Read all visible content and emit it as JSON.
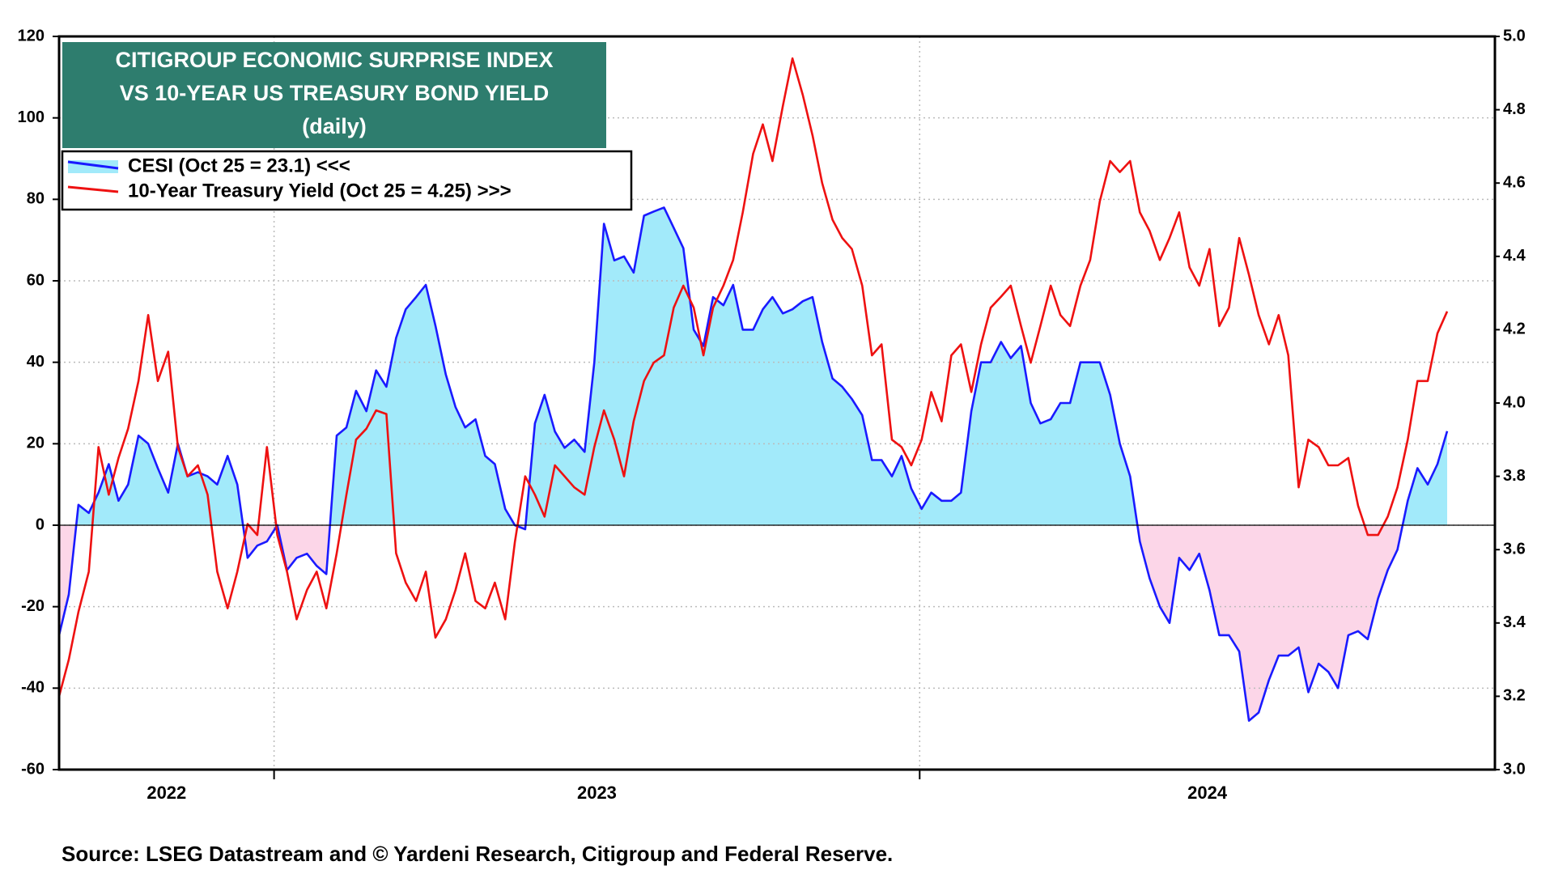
{
  "chart_data": {
    "type": "line",
    "title_lines": [
      "CITIGROUP ECONOMIC SURPRISE INDEX",
      "VS 10-YEAR US TREASURY BOND YIELD",
      "(daily)"
    ],
    "title_color": "#2e7d6e",
    "source": "Source: LSEG Datastream and © Yardeni Research, Citigroup and Federal Reserve.",
    "year_labels": [
      "2022",
      "2023",
      "2024"
    ],
    "xticks": [
      2023,
      2024
    ],
    "xlim": [
      2022.667,
      2024.891
    ],
    "ylim": [
      -60,
      120
    ],
    "yticks": [
      120,
      100,
      80,
      60,
      40,
      20,
      0,
      -20,
      -40,
      -60
    ],
    "y2lim": [
      3.0,
      5.0
    ],
    "y2ticks": [
      {
        "value": 5.0,
        "label": "5.0"
      },
      4.8,
      4.6,
      4.4,
      4.2,
      {
        "value": 4.0,
        "label": "4.0"
      },
      3.8,
      3.6,
      3.4,
      3.2,
      {
        "value": 3.0,
        "label": "3.0"
      }
    ],
    "grid": true,
    "legend": "upper left",
    "x": [
      2022.667,
      2022.682,
      2022.697,
      2022.713,
      2022.728,
      2022.744,
      2022.759,
      2022.774,
      2022.79,
      2022.805,
      2022.82,
      2022.836,
      2022.851,
      2022.866,
      2022.882,
      2022.897,
      2022.912,
      2022.928,
      2022.943,
      2022.959,
      2022.974,
      2022.989,
      2023.005,
      2023.02,
      2023.035,
      2023.051,
      2023.066,
      2023.081,
      2023.097,
      2023.112,
      2023.127,
      2023.143,
      2023.158,
      2023.174,
      2023.189,
      2023.204,
      2023.22,
      2023.235,
      2023.25,
      2023.266,
      2023.281,
      2023.296,
      2023.312,
      2023.327,
      2023.342,
      2023.358,
      2023.373,
      2023.389,
      2023.404,
      2023.419,
      2023.435,
      2023.45,
      2023.465,
      2023.481,
      2023.496,
      2023.511,
      2023.527,
      2023.542,
      2023.557,
      2023.573,
      2023.588,
      2023.604,
      2023.619,
      2023.634,
      2023.65,
      2023.665,
      2023.68,
      2023.696,
      2023.711,
      2023.726,
      2023.742,
      2023.757,
      2023.772,
      2023.788,
      2023.803,
      2023.819,
      2023.834,
      2023.849,
      2023.865,
      2023.88,
      2023.895,
      2023.911,
      2023.926,
      2023.941,
      2023.957,
      2023.972,
      2023.987,
      2024.003,
      2024.018,
      2024.034,
      2024.049,
      2024.064,
      2024.08,
      2024.095,
      2024.11,
      2024.126,
      2024.141,
      2024.157,
      2024.172,
      2024.187,
      2024.203,
      2024.218,
      2024.233,
      2024.249,
      2024.264,
      2024.279,
      2024.295,
      2024.31,
      2024.326,
      2024.341,
      2024.356,
      2024.372,
      2024.387,
      2024.402,
      2024.418,
      2024.433,
      2024.449,
      2024.464,
      2024.479,
      2024.495,
      2024.51,
      2024.525,
      2024.541,
      2024.556,
      2024.571,
      2024.587,
      2024.602,
      2024.618,
      2024.633,
      2024.648,
      2024.664,
      2024.679,
      2024.694,
      2024.71,
      2024.725,
      2024.74,
      2024.756,
      2024.771,
      2024.787,
      2024.802,
      2024.817
    ],
    "series": [
      {
        "name": "CESI (Oct 25 = 23.1) <<<",
        "color": "#1a1aff",
        "fill_positive": "#a2eafa",
        "fill_negative": "#fcd6e8",
        "axis": "y",
        "values": [
          -27,
          -17,
          5,
          3,
          8,
          15,
          6,
          10,
          22,
          20,
          14,
          8,
          20,
          12,
          13,
          12,
          10,
          17,
          10,
          -8,
          -5,
          -4,
          0,
          -11,
          -8,
          -7,
          -10,
          -12,
          22,
          24,
          33,
          28,
          38,
          34,
          46,
          53,
          56,
          59,
          49,
          37,
          29,
          24,
          26,
          17,
          15,
          4,
          0,
          -1,
          25,
          32,
          23,
          19,
          21,
          18,
          40,
          74,
          65,
          66,
          62,
          76,
          77,
          78,
          73,
          68,
          48,
          44,
          56,
          54,
          59,
          48,
          48,
          53,
          56,
          52,
          53,
          55,
          56,
          45,
          36,
          34,
          31,
          27,
          16,
          16,
          12,
          17,
          9,
          4,
          8,
          6,
          6,
          8,
          28,
          40,
          40,
          45,
          41,
          44,
          30,
          25,
          26,
          30,
          30,
          40,
          40,
          40,
          32,
          20,
          12,
          -4,
          -13,
          -20,
          -24,
          -8,
          -11,
          -7,
          -16,
          -27,
          -27,
          -31,
          -48,
          -46,
          -38,
          -32,
          -32,
          -30,
          -41,
          -34,
          -36,
          -40,
          -27,
          -26,
          -28,
          -18,
          -11,
          -6,
          6,
          14,
          10,
          15,
          23.1
        ]
      },
      {
        "name": "10-Year Treasury Yield (Oct 25 = 4.25) >>>",
        "color": "#ee1111",
        "axis": "y2",
        "values": [
          3.2,
          3.3,
          3.43,
          3.54,
          3.88,
          3.75,
          3.85,
          3.93,
          4.06,
          4.24,
          4.06,
          4.14,
          3.88,
          3.8,
          3.83,
          3.75,
          3.54,
          3.44,
          3.54,
          3.67,
          3.64,
          3.88,
          3.64,
          3.54,
          3.41,
          3.49,
          3.54,
          3.44,
          3.59,
          3.75,
          3.9,
          3.93,
          3.98,
          3.97,
          3.59,
          3.51,
          3.46,
          3.54,
          3.36,
          3.41,
          3.49,
          3.59,
          3.46,
          3.44,
          3.51,
          3.41,
          3.62,
          3.8,
          3.75,
          3.69,
          3.83,
          3.8,
          3.77,
          3.75,
          3.88,
          3.98,
          3.9,
          3.8,
          3.95,
          4.06,
          4.11,
          4.13,
          4.26,
          4.32,
          4.26,
          4.13,
          4.26,
          4.32,
          4.39,
          4.52,
          4.68,
          4.76,
          4.66,
          4.81,
          4.94,
          4.84,
          4.73,
          4.6,
          4.5,
          4.45,
          4.42,
          4.32,
          4.13,
          4.16,
          3.9,
          3.88,
          3.83,
          3.9,
          4.03,
          3.95,
          4.13,
          4.16,
          4.03,
          4.16,
          4.26,
          4.29,
          4.32,
          4.21,
          4.11,
          4.21,
          4.32,
          4.24,
          4.21,
          4.32,
          4.39,
          4.55,
          4.66,
          4.63,
          4.66,
          4.52,
          4.47,
          4.39,
          4.45,
          4.52,
          4.37,
          4.32,
          4.42,
          4.21,
          4.26,
          4.45,
          4.35,
          4.24,
          4.16,
          4.24,
          4.13,
          3.77,
          3.9,
          3.88,
          3.83,
          3.83,
          3.85,
          3.72,
          3.64,
          3.64,
          3.69,
          3.77,
          3.9,
          4.06,
          4.06,
          4.19,
          4.25
        ]
      }
    ]
  }
}
